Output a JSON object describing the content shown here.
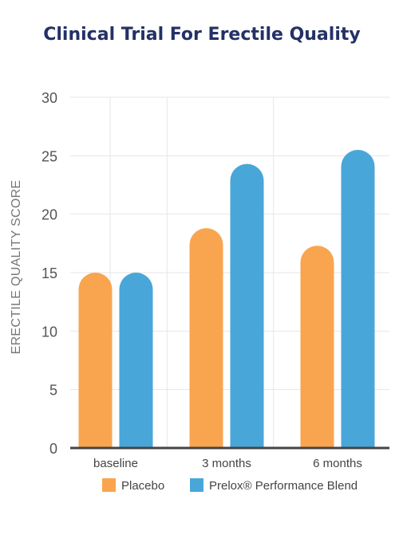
{
  "chart_data": {
    "type": "bar",
    "title": "Clinical Trial For Erectile Quality",
    "ylabel": "ERECTILE QUALITY SCORE",
    "xlabel": "",
    "ylim": [
      0,
      30
    ],
    "yticks": [
      0,
      5,
      10,
      15,
      20,
      25,
      30
    ],
    "categories": [
      "baseline",
      "3 months",
      "6 months"
    ],
    "series": [
      {
        "name": "Placebo",
        "color": "#F9A54F",
        "values": [
          15,
          18.8,
          17.3
        ]
      },
      {
        "name": "Prelox® Performance Blend",
        "color": "#49A6D9",
        "values": [
          15,
          24.3,
          25.5
        ]
      }
    ],
    "grid": true,
    "legend_position": "bottom"
  }
}
